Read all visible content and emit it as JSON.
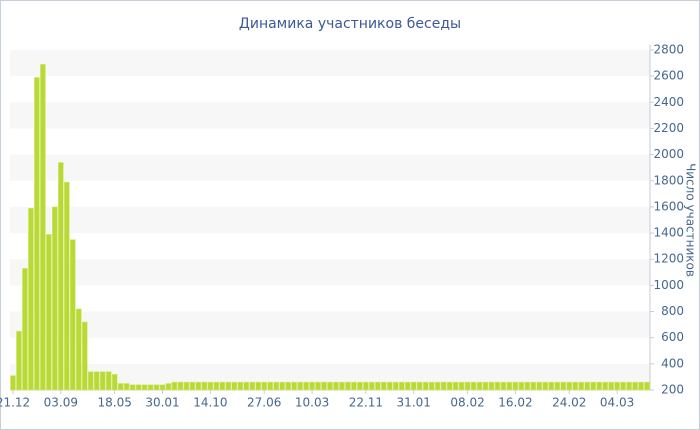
{
  "chart_data": {
    "type": "bar",
    "title": "Динамика участников беседы",
    "y_axis_label": "Число участников",
    "categories": [
      "21.12",
      null,
      null,
      null,
      null,
      null,
      null,
      null,
      "03.09",
      null,
      null,
      null,
      null,
      null,
      null,
      null,
      null,
      "18.05",
      null,
      null,
      null,
      null,
      null,
      null,
      null,
      "30.01",
      null,
      null,
      null,
      null,
      null,
      null,
      null,
      "14.10",
      null,
      null,
      null,
      null,
      null,
      null,
      null,
      null,
      "27.06",
      null,
      null,
      null,
      null,
      null,
      null,
      null,
      "10.03",
      null,
      null,
      null,
      null,
      null,
      null,
      null,
      null,
      "22.11",
      null,
      null,
      null,
      null,
      null,
      null,
      null,
      "31.01",
      null,
      null,
      null,
      null,
      null,
      null,
      null,
      null,
      "08.02",
      null,
      null,
      null,
      null,
      null,
      null,
      null,
      "16.02",
      null,
      null,
      null,
      null,
      null,
      null,
      null,
      null,
      "24.02",
      null,
      null,
      null,
      null,
      null,
      null,
      null,
      "04.03",
      null,
      null,
      null,
      null,
      null
    ],
    "values": [
      310,
      650,
      1130,
      1590,
      2590,
      2690,
      1390,
      1600,
      1940,
      1790,
      1350,
      820,
      720,
      340,
      340,
      340,
      340,
      320,
      250,
      250,
      240,
      240,
      240,
      240,
      240,
      240,
      250,
      260,
      260,
      260,
      260,
      260,
      260,
      260,
      260,
      260,
      260,
      260,
      260,
      260,
      260,
      260,
      260,
      260,
      260,
      260,
      260,
      260,
      260,
      260,
      260,
      260,
      260,
      260,
      260,
      260,
      260,
      260,
      260,
      260,
      260,
      260,
      260,
      260,
      260,
      260,
      260,
      260,
      260,
      260,
      260,
      260,
      260,
      260,
      260,
      260,
      260,
      260,
      260,
      260,
      260,
      260,
      260,
      260,
      260,
      260,
      260,
      260,
      260,
      260,
      260,
      260,
      260,
      260,
      260,
      260,
      260,
      260,
      260,
      260,
      260,
      260,
      260,
      260,
      260,
      260,
      260
    ],
    "color": "#b8d936",
    "ylim": [
      200,
      2800
    ],
    "yticks": [
      200,
      400,
      600,
      800,
      1000,
      1200,
      1400,
      1600,
      1800,
      2000,
      2200,
      2400,
      2600,
      2800
    ],
    "y_axis_side": "right",
    "grid": "bands"
  }
}
